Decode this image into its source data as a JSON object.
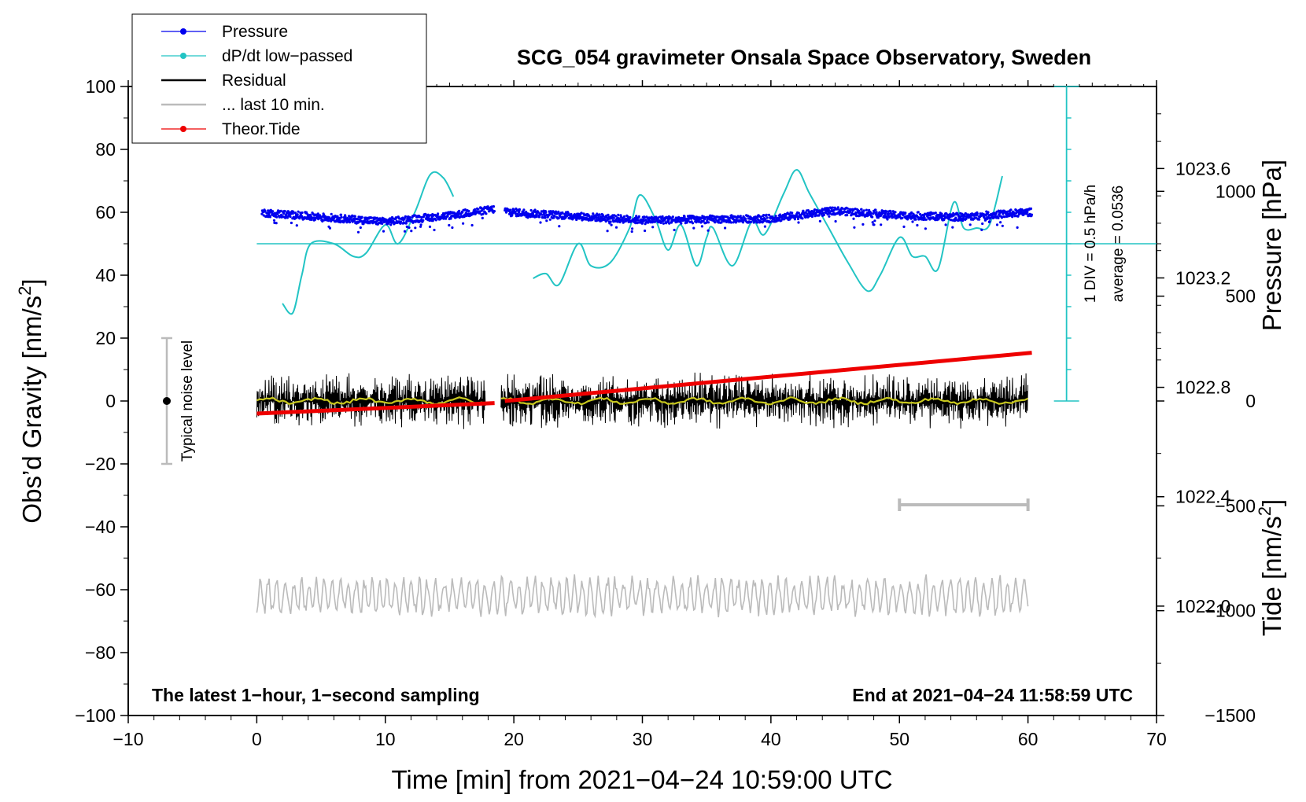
{
  "chart_data": {
    "type": "line",
    "title": "SCG_054 gravimeter Onsala Space Observatory, Sweden",
    "xlabel": "Time [min] from 2021−04−24 10:59:00 UTC",
    "ylabel_left": "Obs’d Gravity [nm/s",
    "ylabel_left_sup": "2",
    "ylabel_left_end": "]",
    "ylabel_right_pressure": "Pressure [hPa]",
    "ylabel_right_tide": "Tide [nm/s",
    "ylabel_right_tide_sup": "2",
    "ylabel_right_tide_end": "]",
    "xlim": [
      -10,
      70
    ],
    "ylim": [
      -100,
      100
    ],
    "pressure_range": [
      1021.6,
      1023.9
    ],
    "tide_range": [
      -1500,
      1500
    ],
    "x_ticks": [
      "−10",
      "0",
      "10",
      "20",
      "30",
      "40",
      "50",
      "60",
      "70"
    ],
    "y_ticks": [
      "−100",
      "−80",
      "−60",
      "−40",
      "−20",
      "0",
      "20",
      "40",
      "60",
      "80",
      "100"
    ],
    "pressure_ticks": [
      "1022.0",
      "1022.4",
      "1022.8",
      "1023.2",
      "1023.6"
    ],
    "tide_ticks": [
      "−1500",
      "−1000",
      "−500",
      "0",
      "500",
      "1000"
    ],
    "legend": [
      {
        "name": "Pressure",
        "color": "#0000ee",
        "marker": "dot"
      },
      {
        "name": "dP/dt low−passed",
        "color": "#22c4c4",
        "marker": "dot"
      },
      {
        "name": "Residual",
        "color": "#000000",
        "marker": "none"
      },
      {
        "name": "... last 10 min.",
        "color": "#bbbbbb",
        "marker": "none"
      },
      {
        "name": "Theor.Tide",
        "color": "#ee0000",
        "marker": "dot"
      }
    ],
    "corner_left": "The latest 1−hour, 1−second sampling",
    "corner_right": "End at 2021−04−24 11:58:59 UTC",
    "noise_label": "Typical noise level",
    "noise_range": [
      -20,
      20
    ],
    "div_label": "1 DIV = 0.5 hPa/h",
    "average_label": "average = 0.0536",
    "dpdt_baseline": 50,
    "last10_bar": [
      50,
      60
    ],
    "series": [
      {
        "name": "Pressure",
        "color": "#0000ee",
        "axis": "left",
        "segments": [
          [
            0.4,
            18.5
          ],
          [
            19.3,
            60.3
          ]
        ],
        "trend": [
          [
            0,
            60
          ],
          [
            5,
            58.5
          ],
          [
            10,
            57
          ],
          [
            15,
            59
          ],
          [
            18.5,
            61
          ],
          [
            20,
            60
          ],
          [
            30,
            57.5
          ],
          [
            40,
            58
          ],
          [
            45,
            60.5
          ],
          [
            50,
            59
          ],
          [
            55,
            58.5
          ],
          [
            60,
            60
          ]
        ],
        "noise": 1.2
      },
      {
        "name": "dP/dt low-passed",
        "color": "#22c4c4",
        "axis": "left",
        "segments": [
          [
            [
              2,
              31
            ],
            [
              2.8,
              28
            ],
            [
              3.5,
              40
            ],
            [
              4.2,
              50
            ],
            [
              6,
              50
            ],
            [
              7.5,
              46
            ],
            [
              8.5,
              47
            ],
            [
              10,
              56
            ],
            [
              11,
              50
            ],
            [
              12.3,
              60
            ],
            [
              13.5,
              72
            ],
            [
              14.5,
              71
            ],
            [
              15.3,
              65
            ]
          ],
          [
            [
              21.5,
              39
            ],
            [
              22.5,
              40.5
            ],
            [
              23.5,
              37
            ],
            [
              25,
              50
            ],
            [
              26,
              43
            ],
            [
              27.5,
              44
            ],
            [
              29,
              55
            ],
            [
              29.8,
              65.5
            ],
            [
              31,
              58
            ],
            [
              32,
              48
            ],
            [
              33,
              56
            ],
            [
              34.2,
              43
            ],
            [
              35,
              52
            ],
            [
              35.5,
              55
            ],
            [
              37,
              43
            ],
            [
              38.5,
              57
            ],
            [
              39.5,
              53
            ],
            [
              41,
              66
            ],
            [
              42,
              73.5
            ],
            [
              43,
              66
            ],
            [
              44.5,
              55
            ],
            [
              46,
              44
            ],
            [
              47.5,
              35
            ],
            [
              48.5,
              40
            ],
            [
              50,
              52
            ],
            [
              51,
              46
            ],
            [
              52,
              46
            ],
            [
              53,
              42
            ],
            [
              54.2,
              63
            ],
            [
              55,
              55
            ],
            [
              56,
              55
            ],
            [
              57,
              56
            ],
            [
              58,
              71.5
            ]
          ]
        ]
      },
      {
        "name": "Residual",
        "color": "#000000",
        "axis": "left",
        "segments": [
          [
            0,
            17.8
          ],
          [
            19,
            60
          ]
        ],
        "center": 0,
        "amplitude": 6
      },
      {
        "name": "Residual smoothed",
        "color": "#c8c81e",
        "axis": "left",
        "segments": [
          [
            0,
            17.8
          ],
          [
            19,
            60
          ]
        ],
        "center": 0,
        "amplitude": 0.8
      },
      {
        "name": "Theor.Tide",
        "color": "#ee0000",
        "axis": "tide",
        "segments": [
          [
            [
              0,
              -60
            ],
            [
              18.5,
              -10
            ]
          ],
          [
            [
              19.3,
              0
            ],
            [
              60.3,
              230
            ]
          ]
        ]
      },
      {
        "name": "... last 10 min.",
        "color": "#bbbbbb",
        "axis": "left",
        "segments": [
          [
            0,
            60
          ]
        ],
        "center": -62,
        "amplitude": 5
      }
    ]
  }
}
